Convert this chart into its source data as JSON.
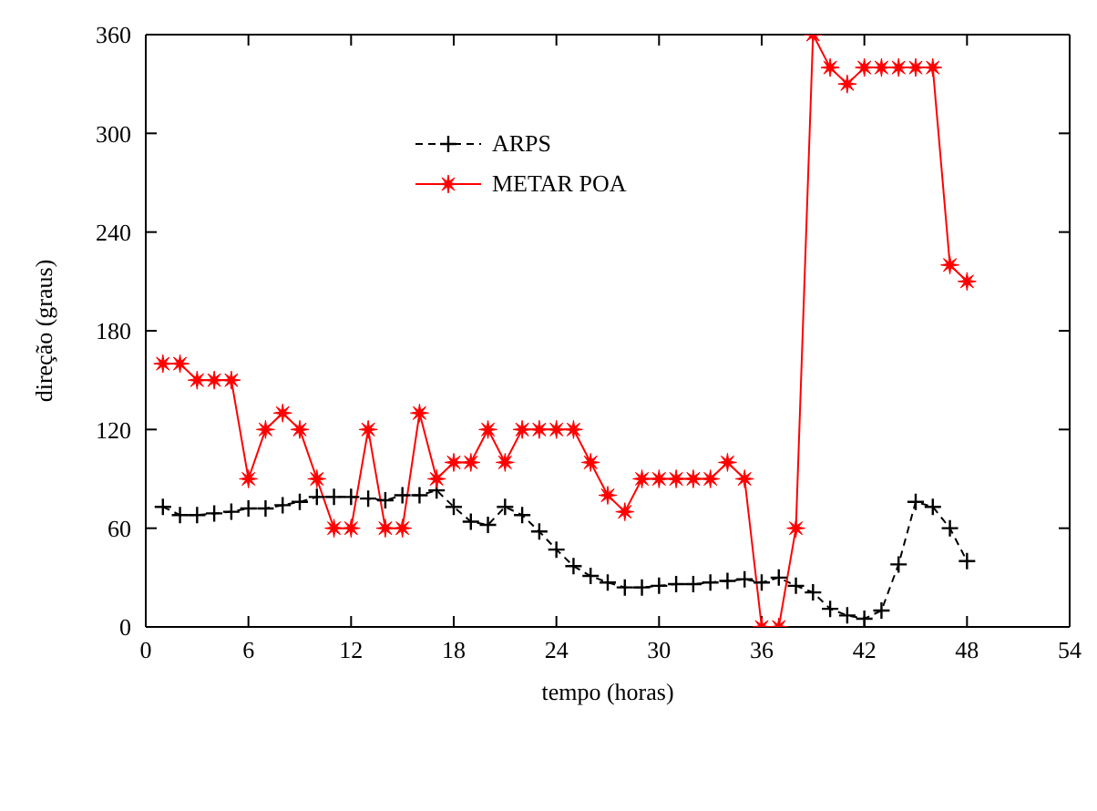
{
  "chart_data": {
    "type": "line",
    "xlabel": "tempo (horas)",
    "ylabel": "direção (graus)",
    "x": [
      1,
      2,
      3,
      4,
      5,
      6,
      7,
      8,
      9,
      10,
      11,
      12,
      13,
      14,
      15,
      16,
      17,
      18,
      19,
      20,
      21,
      22,
      23,
      24,
      25,
      26,
      27,
      28,
      29,
      30,
      31,
      32,
      33,
      34,
      35,
      36,
      37,
      38,
      39,
      40,
      41,
      42,
      43,
      44,
      45,
      46,
      47,
      48
    ],
    "series": [
      {
        "name": "ARPS",
        "color": "#000000",
        "marker": "cross",
        "line_style": "dashed",
        "values": [
          73,
          68,
          68,
          69,
          70,
          72,
          72,
          74,
          76,
          79,
          79,
          79,
          78,
          77,
          80,
          80,
          83,
          73,
          64,
          62,
          73,
          68,
          58,
          47,
          37,
          31,
          27,
          24,
          24,
          25,
          26,
          26,
          27,
          28,
          29,
          27,
          30,
          25,
          21,
          11,
          7,
          5,
          10,
          38,
          76,
          73,
          60,
          40
        ]
      },
      {
        "name": "METAR POA",
        "color": "#ff0000",
        "marker": "star",
        "line_style": "solid",
        "values": [
          160,
          160,
          150,
          150,
          150,
          90,
          120,
          130,
          120,
          90,
          60,
          60,
          120,
          60,
          60,
          130,
          90,
          100,
          100,
          120,
          100,
          120,
          120,
          120,
          120,
          100,
          80,
          70,
          90,
          90,
          90,
          90,
          90,
          100,
          90,
          0,
          0,
          60,
          360,
          340,
          330,
          340,
          340,
          340,
          340,
          340,
          220,
          210
        ]
      }
    ],
    "xlim": [
      0,
      54
    ],
    "xticks": [
      0,
      6,
      12,
      18,
      24,
      30,
      36,
      42,
      48,
      54
    ],
    "ylim": [
      0,
      360
    ],
    "yticks": [
      0,
      60,
      120,
      180,
      240,
      300,
      360
    ],
    "legend": "top left",
    "grid": false
  }
}
